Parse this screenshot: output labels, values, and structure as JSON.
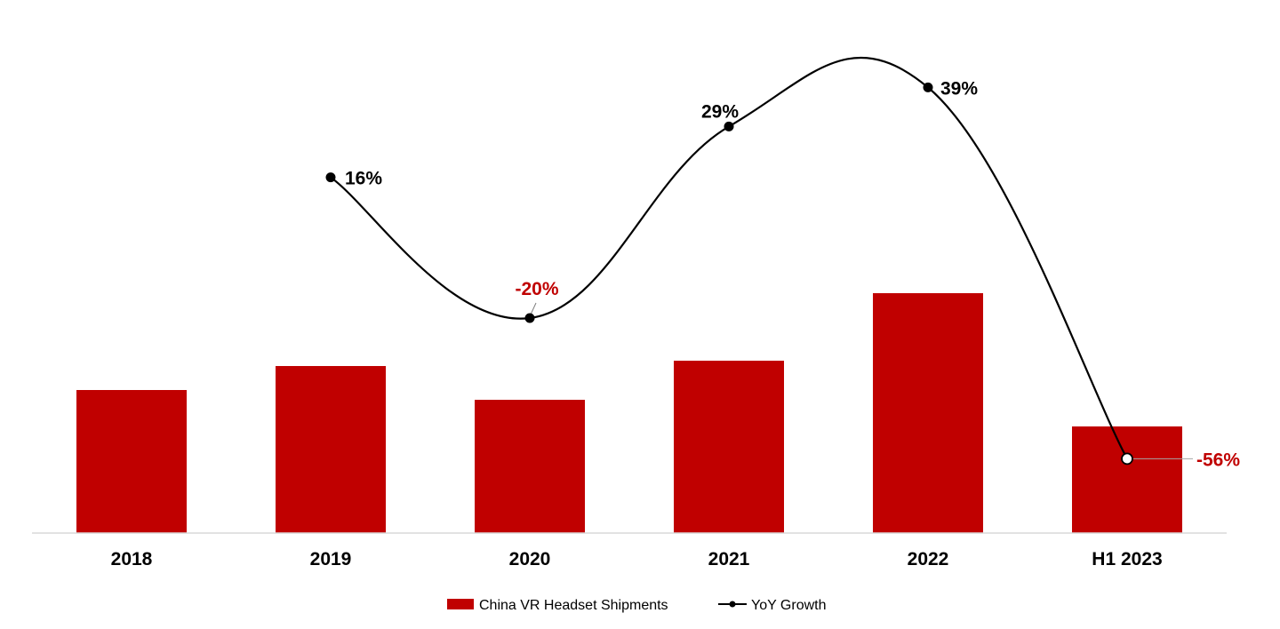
{
  "chart_data": {
    "type": "bar",
    "categories": [
      "2018",
      "2019",
      "2020",
      "2021",
      "2022",
      "H1 2023"
    ],
    "series": [
      {
        "name": "China VR Headset Shipments",
        "type": "bar",
        "values": [
          161,
          188,
          150,
          194,
          270,
          120
        ]
      },
      {
        "name": "YoY Growth",
        "type": "line",
        "values": [
          null,
          16,
          -20,
          29,
          39,
          -56
        ],
        "labels": [
          "",
          "16%",
          "-20%",
          "29%",
          "39%",
          "-56%"
        ]
      }
    ],
    "y2lim": [
      -75,
      50
    ],
    "grid": false,
    "legend_position": "bottom",
    "colors": {
      "bar": "#c00000",
      "line": "#000000",
      "positive_label": "#000000",
      "negative_label": "#c00000",
      "axis": "#d9d9d9"
    }
  }
}
